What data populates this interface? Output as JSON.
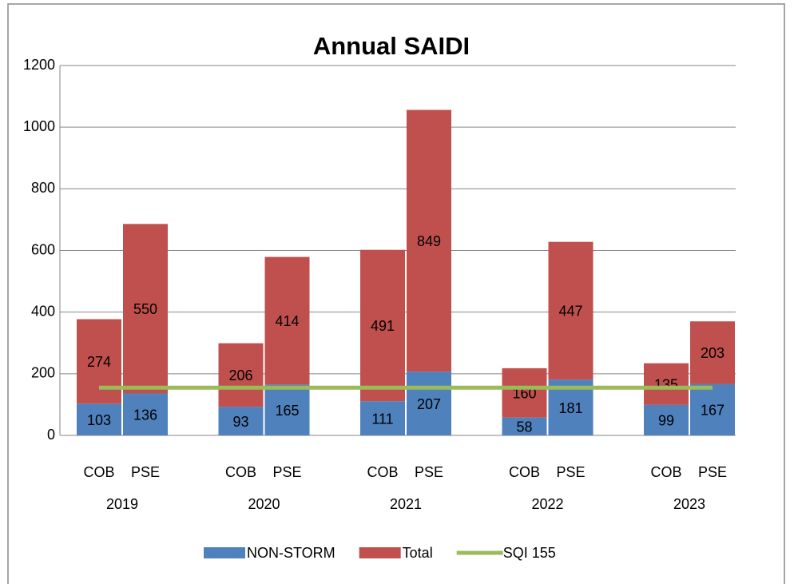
{
  "chart_data": {
    "type": "bar",
    "stacked": true,
    "title": "Annual SAIDI",
    "categories": [
      "COB",
      "PSE",
      "COB",
      "PSE",
      "COB",
      "PSE",
      "COB",
      "PSE",
      "COB",
      "PSE"
    ],
    "groups": [
      "2019",
      "2020",
      "2021",
      "2022",
      "2023"
    ],
    "series": [
      {
        "name": "NON-STORM",
        "color": "#4f81bd",
        "values": [
          103,
          136,
          93,
          165,
          111,
          207,
          58,
          181,
          99,
          167
        ]
      },
      {
        "name": "Total",
        "color": "#c0504d",
        "values": [
          274,
          550,
          206,
          414,
          491,
          849,
          160,
          447,
          135,
          203
        ]
      },
      {
        "name": "SQI 155",
        "color": "#9bbb59",
        "type": "line",
        "values": [
          155,
          155,
          155,
          155,
          155,
          155,
          155,
          155,
          155,
          155
        ]
      }
    ],
    "ylim": [
      0,
      1200
    ],
    "yticks": [
      0,
      200,
      400,
      600,
      800,
      1000,
      1200
    ],
    "grid": true,
    "legend": "bottom"
  }
}
